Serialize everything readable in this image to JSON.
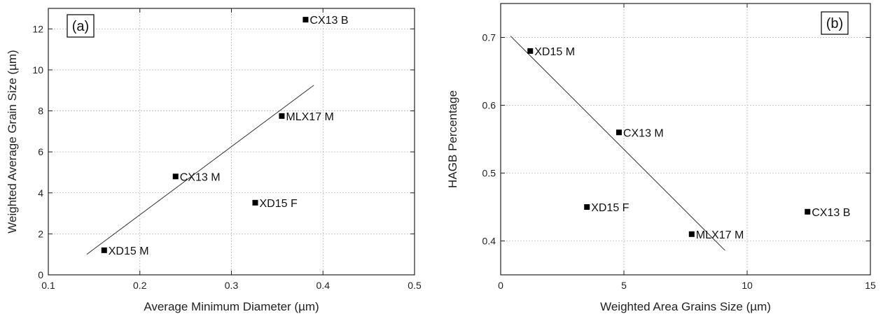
{
  "chart_data": [
    {
      "type": "scatter",
      "panel_label": "(a)",
      "xlabel": "Average Minimum Diameter (µm)",
      "ylabel": "Weighted Average Grain Size (µm)",
      "xlim": [
        0.1,
        0.5
      ],
      "ylim": [
        0,
        13
      ],
      "xticks": [
        "0.1",
        "0.2",
        "0.3",
        "0.4",
        "0.5"
      ],
      "yticks": [
        "0",
        "2",
        "4",
        "6",
        "8",
        "10",
        "12"
      ],
      "grid": true,
      "points": [
        {
          "label": "CX13 B",
          "x": 0.381,
          "y": 12.45
        },
        {
          "label": "MLX17 M",
          "x": 0.355,
          "y": 7.75
        },
        {
          "label": "CX13 M",
          "x": 0.239,
          "y": 4.8
        },
        {
          "label": "XD15 F",
          "x": 0.326,
          "y": 3.52
        },
        {
          "label": "XD15 M",
          "x": 0.161,
          "y": 1.2
        }
      ],
      "fit_line": {
        "x": [
          0.142,
          0.39
        ],
        "y": [
          1.0,
          9.25
        ]
      }
    },
    {
      "type": "scatter",
      "panel_label": "(b)",
      "xlabel": "Weighted Area Grains Size (µm)",
      "ylabel": "HAGB Percentage",
      "xlim": [
        0,
        15
      ],
      "ylim": [
        0.35,
        0.75
      ],
      "xticks": [
        "0",
        "5",
        "10",
        "15"
      ],
      "yticks": [
        "0.4",
        "0.5",
        "0.6",
        "0.7"
      ],
      "grid": true,
      "points": [
        {
          "label": "XD15 M",
          "x": 1.2,
          "y": 0.68
        },
        {
          "label": "CX13 M",
          "x": 4.8,
          "y": 0.56
        },
        {
          "label": "XD15 F",
          "x": 3.5,
          "y": 0.45
        },
        {
          "label": "MLX17 M",
          "x": 7.75,
          "y": 0.41
        },
        {
          "label": "CX13 B",
          "x": 12.45,
          "y": 0.443
        }
      ],
      "fit_line": {
        "x": [
          0.4,
          9.1
        ],
        "y": [
          0.702,
          0.386
        ]
      }
    }
  ]
}
